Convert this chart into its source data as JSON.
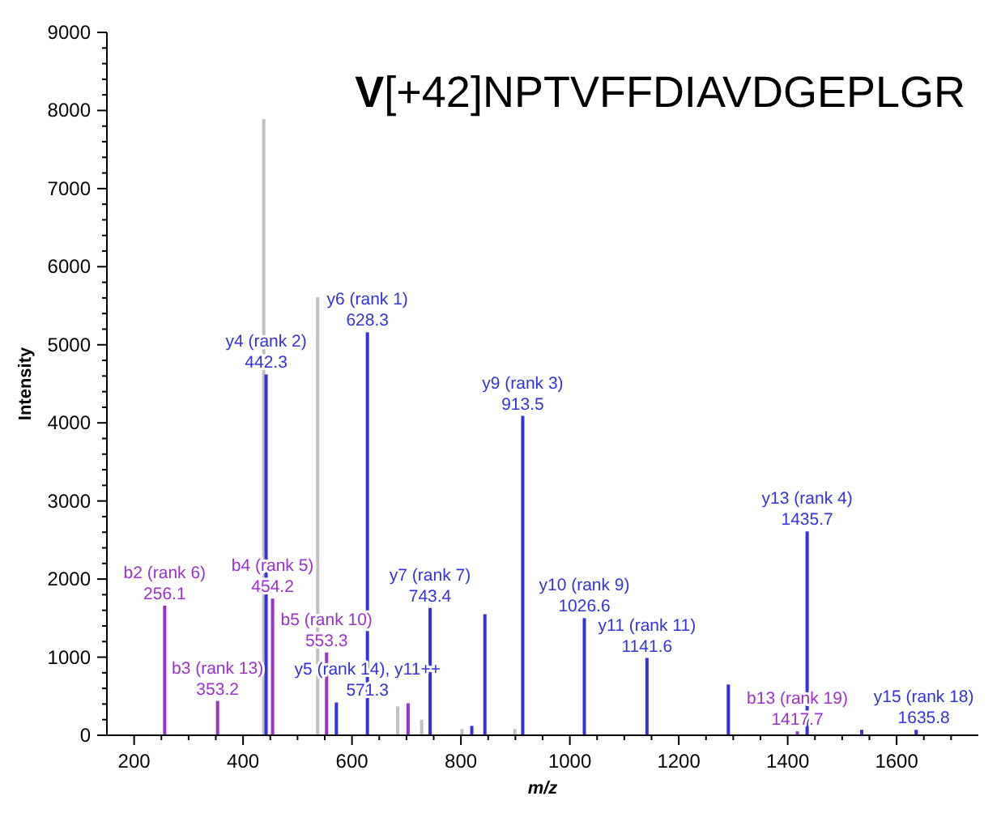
{
  "chart_data": {
    "type": "bar",
    "title": "V[+42]NPTVFFDIAVDGEPLGR",
    "xlabel": "m/z",
    "ylabel": "Intensity",
    "xlim": [
      150,
      1750
    ],
    "xticks": [
      200,
      {
        "value": 250,
        "label": null
      },
      {
        "value": 300,
        "label": null
      },
      {
        "value": 350,
        "label": null
      },
      400,
      {
        "value": 450,
        "label": null
      },
      {
        "value": 500,
        "label": null
      },
      {
        "value": 550,
        "label": null
      },
      600,
      {
        "value": 650,
        "label": null
      },
      {
        "value": 700,
        "label": null
      },
      {
        "value": 750,
        "label": null
      },
      800,
      {
        "value": 850,
        "label": null
      },
      {
        "value": 900,
        "label": null
      },
      {
        "value": 950,
        "label": null
      },
      1000,
      {
        "value": 1050,
        "label": null
      },
      {
        "value": 1100,
        "label": null
      },
      {
        "value": 1150,
        "label": null
      },
      1200,
      {
        "value": 1250,
        "label": null
      },
      {
        "value": 1300,
        "label": null
      },
      {
        "value": 1350,
        "label": null
      },
      1400,
      {
        "value": 1450,
        "label": null
      },
      {
        "value": 1500,
        "label": null
      },
      {
        "value": 1550,
        "label": null
      },
      1600,
      {
        "value": 1650,
        "label": null
      },
      {
        "value": 1700,
        "label": null
      }
    ],
    "ylim": [
      0,
      9000
    ],
    "yticks": [
      0,
      {
        "value": 200,
        "label": null
      },
      {
        "value": 400,
        "label": null
      },
      {
        "value": 600,
        "label": null
      },
      {
        "value": 800,
        "label": null
      },
      1000,
      {
        "value": 1200,
        "label": null
      },
      {
        "value": 1400,
        "label": null
      },
      {
        "value": 1600,
        "label": null
      },
      {
        "value": 1800,
        "label": null
      },
      2000,
      {
        "value": 2200,
        "label": null
      },
      {
        "value": 2400,
        "label": null
      },
      {
        "value": 2600,
        "label": null
      },
      {
        "value": 2800,
        "label": null
      },
      3000,
      {
        "value": 3200,
        "label": null
      },
      {
        "value": 3400,
        "label": null
      },
      {
        "value": 3600,
        "label": null
      },
      {
        "value": 3800,
        "label": null
      },
      4000,
      {
        "value": 4200,
        "label": null
      },
      {
        "value": 4400,
        "label": null
      },
      {
        "value": 4600,
        "label": null
      },
      {
        "value": 4800,
        "label": null
      },
      5000,
      {
        "value": 5200,
        "label": null
      },
      {
        "value": 5400,
        "label": null
      },
      {
        "value": 5600,
        "label": null
      },
      {
        "value": 5800,
        "label": null
      },
      6000,
      {
        "value": 6200,
        "label": null
      },
      {
        "value": 6400,
        "label": null
      },
      {
        "value": 6600,
        "label": null
      },
      {
        "value": 6800,
        "label": null
      },
      7000,
      {
        "value": 7200,
        "label": null
      },
      {
        "value": 7400,
        "label": null
      },
      {
        "value": 7600,
        "label": null
      },
      {
        "value": 7800,
        "label": null
      },
      8000,
      {
        "value": 8200,
        "label": null
      },
      {
        "value": 8400,
        "label": null
      },
      {
        "value": 8600,
        "label": null
      },
      {
        "value": 8800,
        "label": null
      },
      9000
    ],
    "series": [
      {
        "color": "#c0c0c0",
        "x": [
          438,
          537,
          684,
          728,
          802,
          899
        ],
        "values": [
          7890,
          5610,
          370,
          200,
          80,
          80
        ]
      },
      {
        "color": "#3333dd",
        "x": [
          442.3,
          571.3,
          628.3,
          743.4,
          820,
          844,
          913.5,
          1026.6,
          1141.6,
          1291,
          1435.7,
          1536,
          1635.8
        ],
        "values": [
          4620,
          420,
          5160,
          1630,
          120,
          1550,
          4090,
          1500,
          990,
          650,
          2610,
          70,
          70
        ]
      },
      {
        "color": "#9933cc",
        "x": [
          256.1,
          353.2,
          454.2,
          553.3,
          703,
          1417.7
        ],
        "values": [
          1660,
          440,
          1750,
          1060,
          410,
          50
        ]
      }
    ],
    "annotations": [
      {
        "text": "b2 (rank 6)\n256.1",
        "x": 256.1,
        "y": 1660
      },
      {
        "text": "b3 (rank 13)\n353.2",
        "x": 353.2,
        "y": 440
      },
      {
        "text": "y4 (rank 2)\n442.3",
        "x": 442.3,
        "y": 4620
      },
      {
        "text": "b4 (rank 5)\n454.2",
        "x": 454.2,
        "y": 1750
      },
      {
        "text": "b5 (rank 10)\n553.3",
        "x": 553.3,
        "y": 1060
      },
      {
        "text": "y5 (rank 14), y11++\n571.3",
        "x": 571.3,
        "y": 420
      },
      {
        "text": "y6 (rank 1)\n628.3",
        "x": 628.3,
        "y": 5160
      },
      {
        "text": "y7 (rank 7)\n743.4",
        "x": 743.4,
        "y": 1630
      },
      {
        "text": "y9 (rank 3)\n913.5",
        "x": 913.5,
        "y": 4090
      },
      {
        "text": "y10 (rank 9)\n1026.6",
        "x": 1026.6,
        "y": 1500
      },
      {
        "text": "y11 (rank 11)\n1141.6",
        "x": 1141.6,
        "y": 990
      },
      {
        "text": "y13 (rank 4)\n1435.7",
        "x": 1435.7,
        "y": 2610
      },
      {
        "text": "b13 (rank 19)\n1417.7",
        "x": 1417.7,
        "y": 50
      },
      {
        "text": "y15 (rank 18)\n1635.8",
        "x": 1635.8,
        "y": 70
      }
    ]
  }
}
